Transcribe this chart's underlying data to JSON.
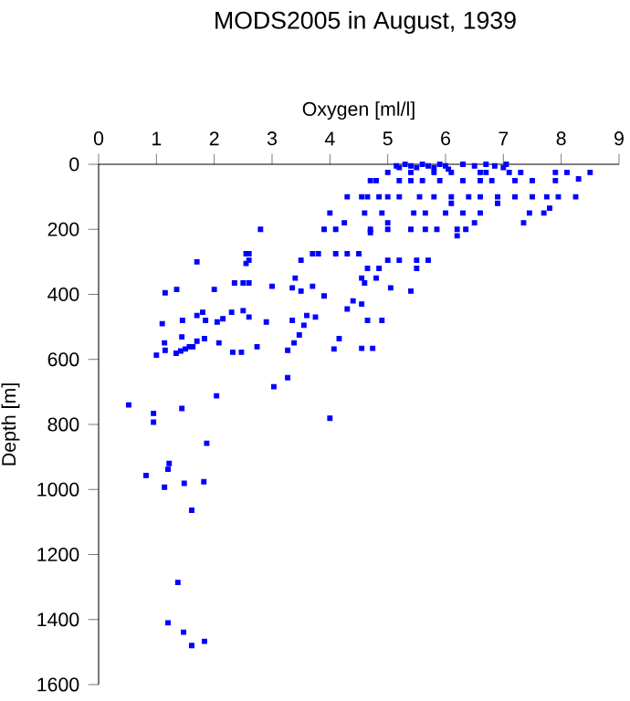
{
  "chart_data": {
    "type": "scatter",
    "title": "MODS2005 in August, 1939",
    "xlabel": "Oxygen [ml/l]",
    "ylabel": "Depth [m]",
    "xlim": [
      0,
      9
    ],
    "xticks": [
      0,
      1,
      2,
      3,
      4,
      5,
      6,
      7,
      8,
      9
    ],
    "ylim": [
      1600,
      0
    ],
    "yticks": [
      0,
      200,
      400,
      600,
      800,
      1000,
      1200,
      1400,
      1600
    ],
    "grid": false,
    "marker": "square",
    "series": [
      {
        "color": "#0000ff",
        "x": [
          5.15,
          5.2,
          5.3,
          5.4,
          5.5,
          5.6,
          5.7,
          5.8,
          5.9,
          6.0,
          6.05,
          6.3,
          6.5,
          6.7,
          6.85,
          7.0,
          7.05,
          5.0,
          5.4,
          5.8,
          6.1,
          6.6,
          6.7,
          7.1,
          7.3,
          7.9,
          8.1,
          8.5,
          4.7,
          4.8,
          5.2,
          5.4,
          5.6,
          5.9,
          6.3,
          6.6,
          6.8,
          7.2,
          7.5,
          7.9,
          8.3,
          4.3,
          4.55,
          4.65,
          4.85,
          5.0,
          5.2,
          5.55,
          5.8,
          6.1,
          6.4,
          6.6,
          6.9,
          7.2,
          7.5,
          7.75,
          7.95,
          8.25,
          6.1,
          6.9,
          7.8,
          4.0,
          4.6,
          4.9,
          5.45,
          5.65,
          6.0,
          6.3,
          6.6,
          7.45,
          7.7,
          4.25,
          5.0,
          6.5,
          7.35,
          2.8,
          3.9,
          4.1,
          4.7,
          5.0,
          5.4,
          5.65,
          5.85,
          6.2,
          6.35,
          6.2,
          4.7,
          2.55,
          2.6,
          3.7,
          3.8,
          4.1,
          4.3,
          4.5,
          2.6,
          3.5,
          5.0,
          5.2,
          5.5,
          5.7,
          1.7,
          2.55,
          4.85,
          5.5,
          4.65,
          3.4,
          4.55,
          4.8,
          2.35,
          2.5,
          2.6,
          4.6,
          1.15,
          1.35,
          2.0,
          3.0,
          3.35,
          3.5,
          3.7,
          3.9,
          5.05,
          5.4,
          4.4,
          1.1,
          1.45,
          1.7,
          1.8,
          1.85,
          2.05,
          2.15,
          2.3,
          2.5,
          2.6,
          2.9,
          3.35,
          3.6,
          3.75,
          3.55,
          4.3,
          4.55,
          4.65,
          4.9,
          1.14,
          1.44,
          1.83,
          2.08,
          1.7,
          1.0,
          1.15,
          1.34,
          1.42,
          1.5,
          1.57,
          1.63,
          2.32,
          2.47,
          2.74,
          3.27,
          3.38,
          3.47,
          4.16,
          4.07,
          4.55,
          4.74,
          3.27,
          3.03,
          2.04,
          0.52,
          0.95,
          0.95,
          1.44,
          4.0,
          1.87,
          1.22,
          1.2,
          0.82,
          1.48,
          1.82,
          1.14,
          1.61,
          1.37,
          1.2,
          1.47,
          1.61,
          1.83
        ],
        "values": [
          5,
          10,
          0,
          5,
          10,
          0,
          5,
          10,
          0,
          5,
          15,
          0,
          5,
          0,
          5,
          10,
          0,
          25,
          25,
          25,
          25,
          25,
          25,
          25,
          25,
          25,
          25,
          25,
          50,
          50,
          50,
          50,
          50,
          50,
          50,
          50,
          50,
          50,
          50,
          50,
          45,
          100,
          100,
          100,
          100,
          100,
          100,
          100,
          100,
          100,
          100,
          100,
          100,
          100,
          100,
          100,
          100,
          100,
          120,
          120,
          135,
          150,
          150,
          150,
          150,
          150,
          150,
          150,
          150,
          150,
          150,
          180,
          180,
          180,
          180,
          200,
          200,
          200,
          200,
          200,
          200,
          200,
          200,
          200,
          200,
          220,
          210,
          275,
          275,
          275,
          275,
          275,
          275,
          275,
          295,
          295,
          295,
          295,
          295,
          295,
          300,
          305,
          320,
          320,
          320,
          350,
          350,
          350,
          365,
          365,
          365,
          365,
          395,
          385,
          385,
          375,
          380,
          390,
          375,
          405,
          380,
          390,
          420,
          490,
          480,
          465,
          455,
          480,
          485,
          475,
          455,
          450,
          470,
          485,
          480,
          465,
          470,
          495,
          445,
          430,
          480,
          480,
          549,
          531,
          536,
          549,
          544,
          587,
          572,
          581,
          574,
          568,
          561,
          561,
          578,
          578,
          561,
          572,
          549,
          525,
          536,
          568,
          566,
          566,
          656,
          684,
          712,
          740,
          766,
          793,
          751,
          781,
          858,
          920,
          938,
          957,
          981,
          976,
          993,
          1064,
          1286,
          1410,
          1439,
          1480,
          1467
        ]
      }
    ]
  }
}
